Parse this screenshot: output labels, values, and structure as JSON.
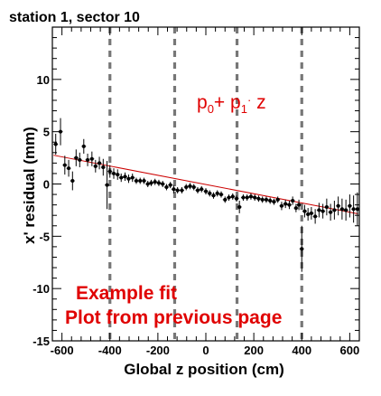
{
  "chart_data": {
    "type": "scatter",
    "title": "station 1, sector 10",
    "xlabel": "Global z position (cm)",
    "ylabel": "x' residual (mm)",
    "xlim": [
      -640,
      640
    ],
    "ylim": [
      -15,
      15
    ],
    "xticks": [
      -600,
      -400,
      -200,
      0,
      200,
      400,
      600
    ],
    "yticks": [
      -15,
      -10,
      -5,
      0,
      5,
      10
    ],
    "fit": {
      "label": "p0+ p1·z",
      "p0": -0.05,
      "p1": -0.00441,
      "color": "#cc0000"
    },
    "dashed_lines_x": [
      -400,
      -130,
      130,
      400
    ],
    "annotations": [
      "Example fit",
      "Plot from previous page"
    ],
    "series": [
      {
        "x": [
          -626,
          -606,
          -588,
          -572,
          -556,
          -541,
          -526,
          -509,
          -493,
          -475,
          -460,
          -444,
          -428,
          -412,
          -400,
          -384,
          -368,
          -353,
          -337,
          -322,
          -306,
          -290,
          -274,
          -258,
          -242,
          -228,
          -212,
          -196,
          -180,
          -164,
          -148,
          -134,
          -118,
          -100,
          -82,
          -66,
          -50,
          -34,
          -18,
          0,
          16,
          32,
          48,
          64,
          80,
          96,
          112,
          128,
          140,
          156,
          172,
          188,
          204,
          220,
          236,
          252,
          268,
          284,
          300,
          316,
          332,
          348,
          362,
          376,
          388,
          400,
          412,
          426,
          440,
          456,
          472,
          488,
          504,
          520,
          536,
          552,
          568,
          584,
          600,
          616,
          632
        ],
        "y": [
          3.8,
          5.0,
          1.8,
          1.5,
          0.3,
          2.5,
          2.3,
          3.6,
          2.3,
          2.4,
          1.7,
          2.0,
          1.6,
          -0.1,
          1.2,
          1.0,
          0.9,
          0.6,
          0.7,
          0.5,
          0.6,
          0.3,
          0.3,
          0.3,
          0.0,
          0.1,
          0.2,
          0.1,
          0.0,
          -0.3,
          -0.1,
          -0.5,
          -0.6,
          -0.6,
          -0.3,
          -0.2,
          -0.3,
          -0.6,
          -0.5,
          -0.7,
          -0.9,
          -1.1,
          -0.9,
          -1.0,
          -1.5,
          -1.3,
          -1.2,
          -1.4,
          -2.2,
          -1.3,
          -1.3,
          -1.2,
          -1.3,
          -1.4,
          -1.5,
          -1.5,
          -1.6,
          -1.7,
          -1.5,
          -2.1,
          -1.9,
          -2.0,
          -1.6,
          -2.3,
          -2.0,
          -6.2,
          -2.6,
          -2.9,
          -2.8,
          -3.1,
          -2.5,
          -2.6,
          -2.2,
          -2.7,
          -2.5,
          -2.1,
          -2.4,
          -2.5,
          -2.1,
          -2.4,
          -2.4
        ],
        "yerr": [
          1.0,
          1.3,
          0.9,
          0.8,
          0.9,
          0.8,
          0.7,
          0.7,
          0.6,
          0.7,
          0.6,
          0.6,
          0.8,
          2.3,
          0.6,
          0.5,
          0.5,
          0.4,
          0.4,
          0.4,
          0.4,
          0.3,
          0.3,
          0.3,
          0.3,
          0.3,
          0.3,
          0.3,
          0.3,
          0.3,
          0.3,
          0.4,
          0.3,
          0.3,
          0.3,
          0.3,
          0.3,
          0.3,
          0.3,
          0.3,
          0.3,
          0.3,
          0.3,
          0.3,
          0.3,
          0.3,
          0.3,
          0.3,
          0.6,
          0.3,
          0.3,
          0.3,
          0.3,
          0.3,
          0.3,
          0.3,
          0.3,
          0.3,
          0.3,
          0.4,
          0.4,
          0.4,
          0.4,
          0.4,
          0.5,
          2.2,
          0.6,
          0.6,
          0.6,
          0.7,
          0.7,
          0.7,
          0.8,
          0.8,
          0.9,
          0.9,
          1.0,
          1.0,
          1.1,
          1.3,
          1.6
        ]
      }
    ]
  }
}
